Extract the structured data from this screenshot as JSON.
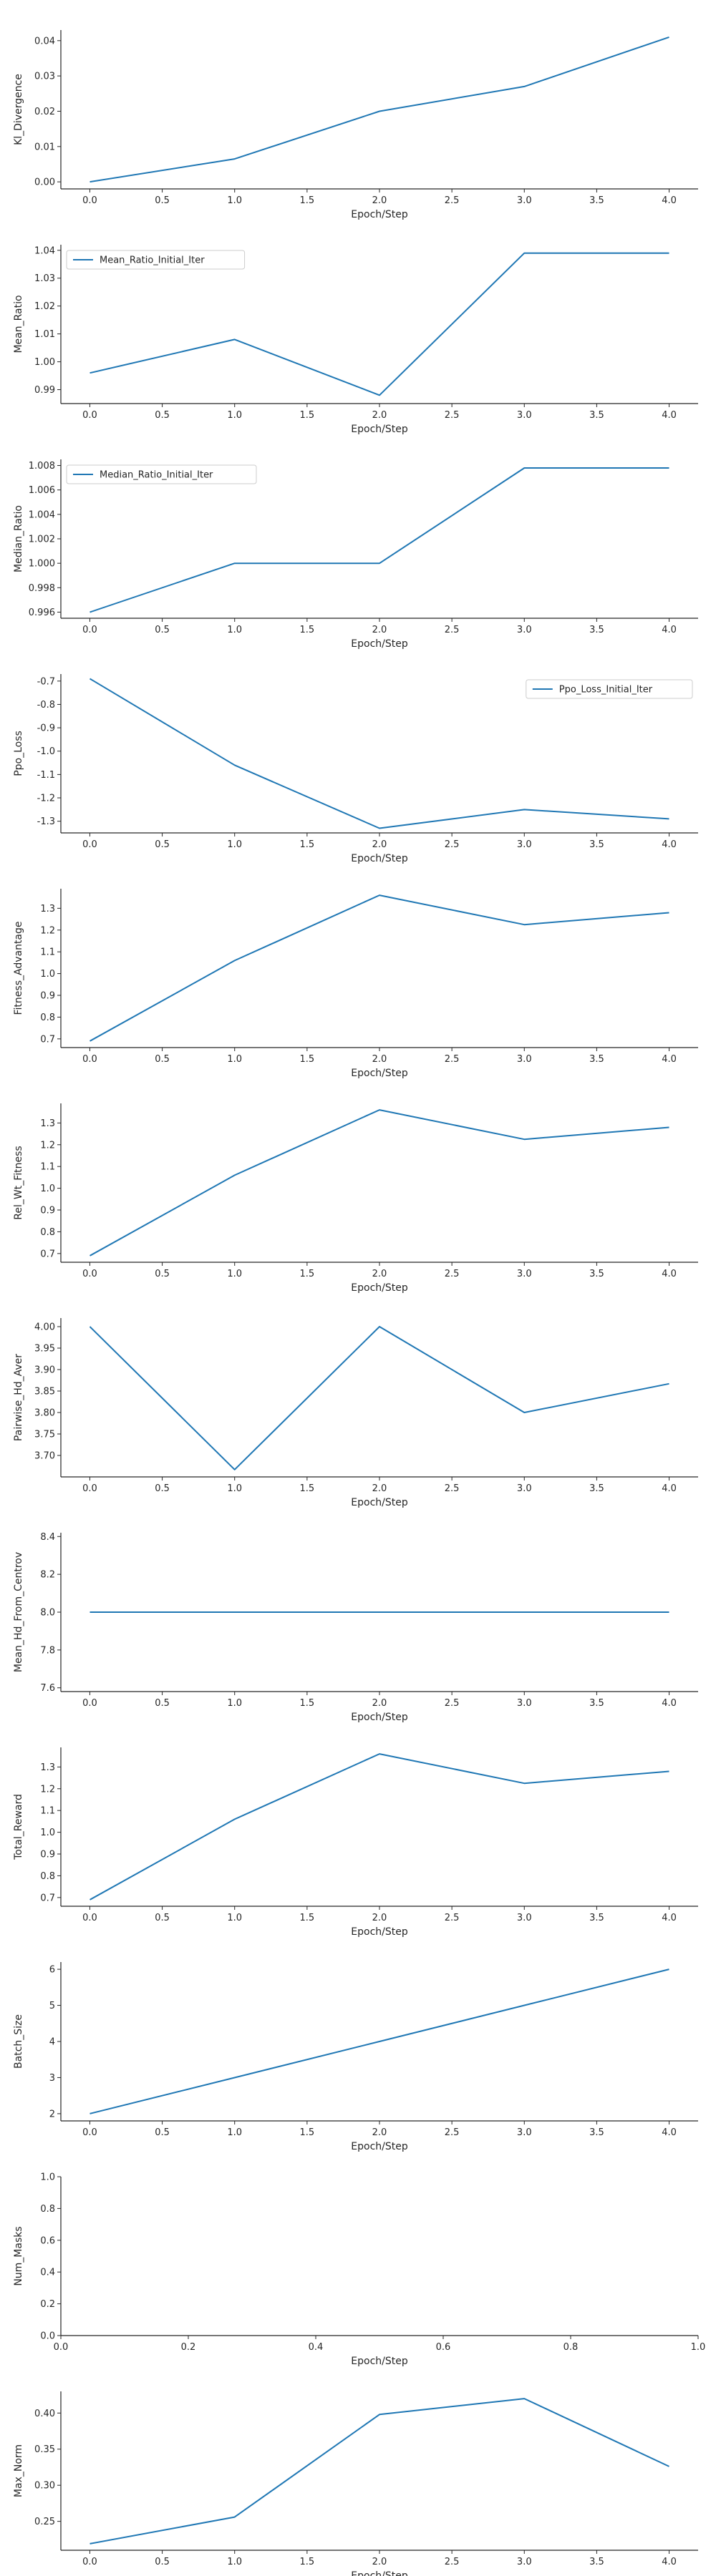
{
  "colors": {
    "line": "#1f77b4",
    "axis": "#262626",
    "legend_border": "#cccccc"
  },
  "chart_data": [
    {
      "type": "line",
      "xlabel": "Epoch/Step",
      "ylabel": "Kl_Divergence",
      "x": [
        0,
        1,
        2,
        3,
        4
      ],
      "ylim": [
        -0.002,
        0.043
      ],
      "xticks": [
        "0.0",
        "0.5",
        "1.0",
        "1.5",
        "2.0",
        "2.5",
        "3.0",
        "3.5",
        "4.0"
      ],
      "yticks": [
        "0.00",
        "0.01",
        "0.02",
        "0.03",
        "0.04"
      ],
      "series": [
        {
          "values": [
            0.0,
            0.0065,
            0.02,
            0.027,
            0.041
          ]
        }
      ]
    },
    {
      "type": "line",
      "xlabel": "Epoch/Step",
      "ylabel": "Mean_Ratio",
      "x": [
        0,
        1,
        2,
        3,
        4
      ],
      "ylim": [
        0.985,
        1.042
      ],
      "xticks": [
        "0.0",
        "0.5",
        "1.0",
        "1.5",
        "2.0",
        "2.5",
        "3.0",
        "3.5",
        "4.0"
      ],
      "yticks": [
        "0.99",
        "1.00",
        "1.01",
        "1.02",
        "1.03",
        "1.04"
      ],
      "legend": "top-left",
      "series": [
        {
          "name": "Mean_Ratio_Initial_Iter",
          "values": [
            0.996,
            1.008,
            0.988,
            1.039,
            1.039
          ]
        }
      ]
    },
    {
      "type": "line",
      "xlabel": "Epoch/Step",
      "ylabel": "Median_Ratio",
      "x": [
        0,
        1,
        2,
        3,
        4
      ],
      "ylim": [
        0.9955,
        1.0085
      ],
      "xticks": [
        "0.0",
        "0.5",
        "1.0",
        "1.5",
        "2.0",
        "2.5",
        "3.0",
        "3.5",
        "4.0"
      ],
      "yticks": [
        "0.996",
        "0.998",
        "1.000",
        "1.002",
        "1.004",
        "1.006",
        "1.008"
      ],
      "legend": "top-left",
      "series": [
        {
          "name": "Median_Ratio_Initial_Iter",
          "values": [
            0.996,
            1.0,
            1.0,
            1.0078,
            1.0078
          ]
        }
      ]
    },
    {
      "type": "line",
      "xlabel": "Epoch/Step",
      "ylabel": "Ppo_Loss",
      "x": [
        0,
        1,
        2,
        3,
        4
      ],
      "ylim": [
        -1.35,
        -0.67
      ],
      "xticks": [
        "0.0",
        "0.5",
        "1.0",
        "1.5",
        "2.0",
        "2.5",
        "3.0",
        "3.5",
        "4.0"
      ],
      "yticks": [
        "-0.7",
        "-0.8",
        "-0.9",
        "-1.0",
        "-1.1",
        "-1.2",
        "-1.3"
      ],
      "legend": "top-right",
      "series": [
        {
          "name": "Ppo_Loss_Initial_Iter",
          "values": [
            -0.69,
            -1.06,
            -1.33,
            -1.25,
            -1.29
          ]
        }
      ]
    },
    {
      "type": "line",
      "xlabel": "Epoch/Step",
      "ylabel": "Fitness_Advantage",
      "x": [
        0,
        1,
        2,
        3,
        4
      ],
      "ylim": [
        0.66,
        1.39
      ],
      "xticks": [
        "0.0",
        "0.5",
        "1.0",
        "1.5",
        "2.0",
        "2.5",
        "3.0",
        "3.5",
        "4.0"
      ],
      "yticks": [
        "0.7",
        "0.8",
        "0.9",
        "1.0",
        "1.1",
        "1.2",
        "1.3"
      ],
      "series": [
        {
          "values": [
            0.69,
            1.06,
            1.36,
            1.225,
            1.28
          ]
        }
      ]
    },
    {
      "type": "line",
      "xlabel": "Epoch/Step",
      "ylabel": "Rel_Wt_Fitness",
      "x": [
        0,
        1,
        2,
        3,
        4
      ],
      "ylim": [
        0.66,
        1.39
      ],
      "xticks": [
        "0.0",
        "0.5",
        "1.0",
        "1.5",
        "2.0",
        "2.5",
        "3.0",
        "3.5",
        "4.0"
      ],
      "yticks": [
        "0.7",
        "0.8",
        "0.9",
        "1.0",
        "1.1",
        "1.2",
        "1.3"
      ],
      "series": [
        {
          "values": [
            0.69,
            1.06,
            1.36,
            1.225,
            1.28
          ]
        }
      ]
    },
    {
      "type": "line",
      "xlabel": "Epoch/Step",
      "ylabel": "Pairwise_Hd_Aver",
      "x": [
        0,
        1,
        2,
        3,
        4
      ],
      "ylim": [
        3.65,
        4.02
      ],
      "xticks": [
        "0.0",
        "0.5",
        "1.0",
        "1.5",
        "2.0",
        "2.5",
        "3.0",
        "3.5",
        "4.0"
      ],
      "yticks": [
        "3.70",
        "3.75",
        "3.80",
        "3.85",
        "3.90",
        "3.95",
        "4.00"
      ],
      "series": [
        {
          "values": [
            4.0,
            3.667,
            4.0,
            3.8,
            3.867
          ]
        }
      ]
    },
    {
      "type": "line",
      "xlabel": "Epoch/Step",
      "ylabel": "Mean_Hd_From_Centrov",
      "x": [
        0,
        1,
        2,
        3,
        4
      ],
      "ylim": [
        7.58,
        8.42
      ],
      "xticks": [
        "0.0",
        "0.5",
        "1.0",
        "1.5",
        "2.0",
        "2.5",
        "3.0",
        "3.5",
        "4.0"
      ],
      "yticks": [
        "7.6",
        "7.8",
        "8.0",
        "8.2",
        "8.4"
      ],
      "series": [
        {
          "values": [
            8.0,
            8.0,
            8.0,
            8.0,
            8.0
          ]
        }
      ]
    },
    {
      "type": "line",
      "xlabel": "Epoch/Step",
      "ylabel": "Total_Reward",
      "x": [
        0,
        1,
        2,
        3,
        4
      ],
      "ylim": [
        0.66,
        1.39
      ],
      "xticks": [
        "0.0",
        "0.5",
        "1.0",
        "1.5",
        "2.0",
        "2.5",
        "3.0",
        "3.5",
        "4.0"
      ],
      "yticks": [
        "0.7",
        "0.8",
        "0.9",
        "1.0",
        "1.1",
        "1.2",
        "1.3"
      ],
      "series": [
        {
          "values": [
            0.69,
            1.06,
            1.36,
            1.225,
            1.28
          ]
        }
      ]
    },
    {
      "type": "line",
      "xlabel": "Epoch/Step",
      "ylabel": "Batch_Size",
      "x": [
        0,
        1,
        2,
        3,
        4
      ],
      "ylim": [
        1.8,
        6.2
      ],
      "xticks": [
        "0.0",
        "0.5",
        "1.0",
        "1.5",
        "2.0",
        "2.5",
        "3.0",
        "3.5",
        "4.0"
      ],
      "yticks": [
        "2",
        "3",
        "4",
        "5",
        "6"
      ],
      "series": [
        {
          "values": [
            2,
            3,
            4,
            5,
            6
          ]
        }
      ]
    },
    {
      "type": "line",
      "xlabel": "Epoch/Step",
      "ylabel": "Num_Masks",
      "x": [],
      "xlim": [
        0,
        1
      ],
      "ylim": [
        0,
        1
      ],
      "xticks": [
        "0.0",
        "0.2",
        "0.4",
        "0.6",
        "0.8",
        "1.0"
      ],
      "yticks": [
        "0.0",
        "0.2",
        "0.4",
        "0.6",
        "0.8",
        "1.0"
      ],
      "series": []
    },
    {
      "type": "line",
      "xlabel": "Epoch/Step",
      "ylabel": "Max_Norm",
      "x": [
        0,
        1,
        2,
        3,
        4
      ],
      "ylim": [
        0.21,
        0.43
      ],
      "xticks": [
        "0.0",
        "0.5",
        "1.0",
        "1.5",
        "2.0",
        "2.5",
        "3.0",
        "3.5",
        "4.0"
      ],
      "yticks": [
        "0.25",
        "0.30",
        "0.35",
        "0.40"
      ],
      "series": [
        {
          "values": [
            0.219,
            0.256,
            0.398,
            0.42,
            0.326
          ]
        }
      ]
    }
  ]
}
